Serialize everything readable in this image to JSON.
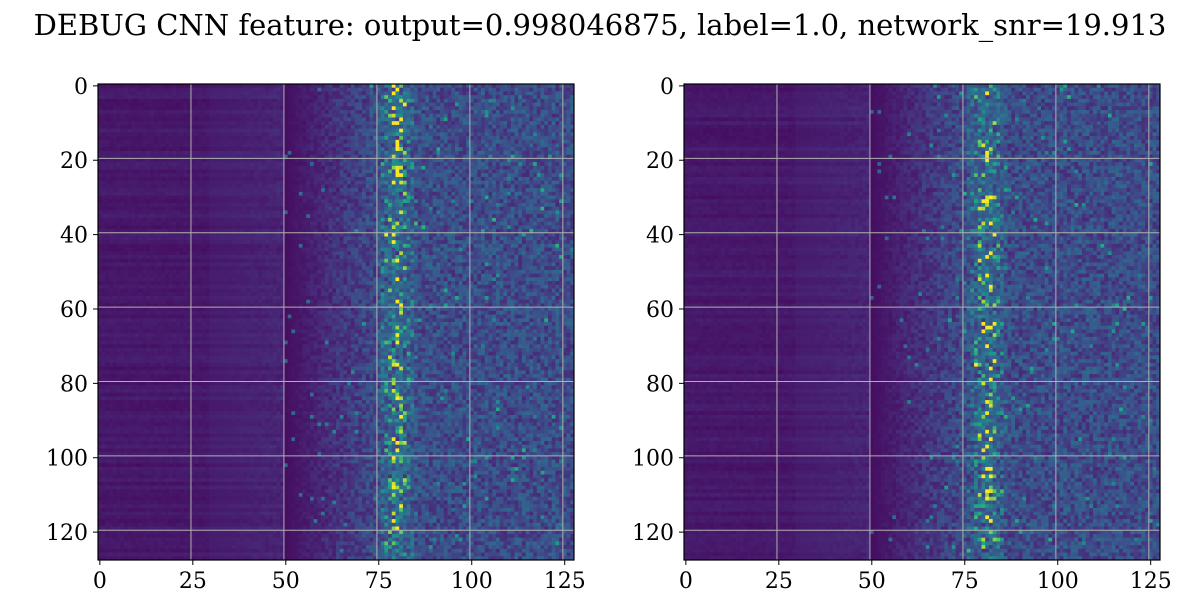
{
  "title": "DEBUG CNN feature: output=0.998046875, label=1.0, network_snr=19.913",
  "colormap": "viridis",
  "chart_data": [
    {
      "type": "heatmap",
      "title": "",
      "xlabel": "",
      "ylabel": "",
      "xlim": [
        0,
        128
      ],
      "ylim": [
        128,
        0
      ],
      "grid": true,
      "x_ticks": [
        0,
        25,
        50,
        75,
        100,
        125
      ],
      "y_ticks": [
        0,
        20,
        40,
        60,
        80,
        100,
        120
      ],
      "rows": 128,
      "cols": 128,
      "low_region_end_col": 50,
      "signal_center_col": 80,
      "max_value": 1.0
    },
    {
      "type": "heatmap",
      "title": "",
      "xlabel": "",
      "ylabel": "",
      "xlim": [
        0,
        128
      ],
      "ylim": [
        128,
        0
      ],
      "grid": true,
      "x_ticks": [
        0,
        25,
        50,
        75,
        100,
        125
      ],
      "y_ticks": [
        0,
        20,
        40,
        60,
        80,
        100,
        120
      ],
      "rows": 128,
      "cols": 128,
      "low_region_end_col": 50,
      "signal_center_col": 81,
      "max_value": 1.0
    }
  ]
}
